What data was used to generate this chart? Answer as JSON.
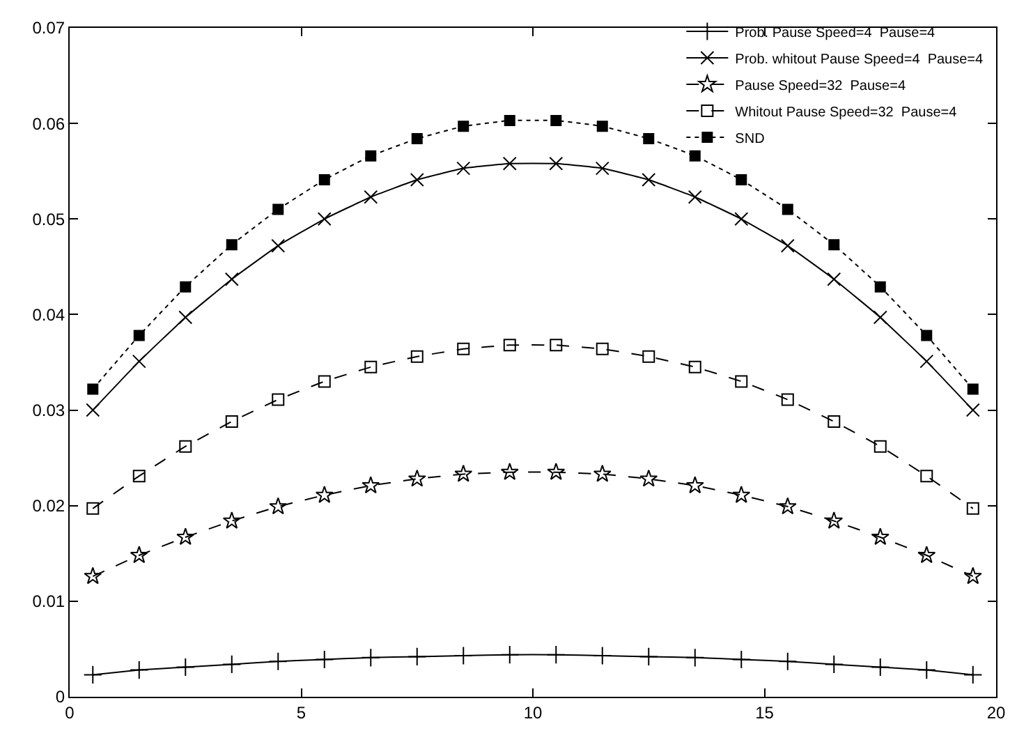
{
  "chart_data": {
    "type": "line",
    "x": [
      0.5,
      1.5,
      2.5,
      3.5,
      4.5,
      5.5,
      6.5,
      7.5,
      8.5,
      9.5,
      10.5,
      11.5,
      12.5,
      13.5,
      14.5,
      15.5,
      16.5,
      17.5,
      18.5,
      19.5
    ],
    "series": [
      {
        "name": "Prob. Pause Speed=4  Pause=4",
        "color": "#000000",
        "marker": "cross",
        "line_style": "solid",
        "values": [
          0.0023,
          0.0028,
          0.0031,
          0.0034,
          0.0037,
          0.0039,
          0.0041,
          0.0042,
          0.0043,
          0.0044,
          0.0044,
          0.0043,
          0.0042,
          0.0041,
          0.0039,
          0.0037,
          0.0034,
          0.0031,
          0.0028,
          0.0023
        ]
      },
      {
        "name": "Prob. whitout Pause Speed=4  Pause=4",
        "color": "#000000",
        "marker": "x",
        "line_style": "solid",
        "values": [
          0.03,
          0.0351,
          0.0397,
          0.0437,
          0.0472,
          0.05,
          0.0523,
          0.0541,
          0.0553,
          0.0558,
          0.0558,
          0.0553,
          0.0541,
          0.0523,
          0.05,
          0.0472,
          0.0437,
          0.0397,
          0.0351,
          0.03
        ]
      },
      {
        "name": "Pause Speed=32  Pause=4",
        "color": "#000000",
        "marker": "star",
        "line_style": "dashed",
        "values": [
          0.0126,
          0.0148,
          0.0167,
          0.0184,
          0.0199,
          0.0211,
          0.0221,
          0.0228,
          0.0233,
          0.0235,
          0.0235,
          0.0233,
          0.0228,
          0.0221,
          0.0211,
          0.0199,
          0.0184,
          0.0167,
          0.0148,
          0.0126
        ]
      },
      {
        "name": "Whitout Pause Speed=32  Pause=4",
        "color": "#000000",
        "marker": "square-open",
        "line_style": "dashed",
        "values": [
          0.0197,
          0.0231,
          0.0262,
          0.0288,
          0.0311,
          0.033,
          0.0345,
          0.0356,
          0.0364,
          0.0368,
          0.0368,
          0.0364,
          0.0356,
          0.0345,
          0.033,
          0.0311,
          0.0288,
          0.0262,
          0.0231,
          0.0197
        ]
      },
      {
        "name": "SND",
        "color": "#000000",
        "marker": "square",
        "line_style": "dotted",
        "values": [
          0.0322,
          0.0378,
          0.0429,
          0.0473,
          0.051,
          0.0541,
          0.0566,
          0.0584,
          0.0597,
          0.0603,
          0.0603,
          0.0597,
          0.0584,
          0.0566,
          0.0541,
          0.051,
          0.0473,
          0.0429,
          0.0378,
          0.0322
        ]
      }
    ],
    "xlim": [
      0,
      20
    ],
    "xticks": [
      0,
      5,
      10,
      15,
      20
    ],
    "ylim": [
      0,
      0.07
    ],
    "yticks": [
      0,
      0.01,
      0.02,
      0.03,
      0.04,
      0.05,
      0.06,
      0.07
    ],
    "grid": false,
    "legend": "top right"
  }
}
